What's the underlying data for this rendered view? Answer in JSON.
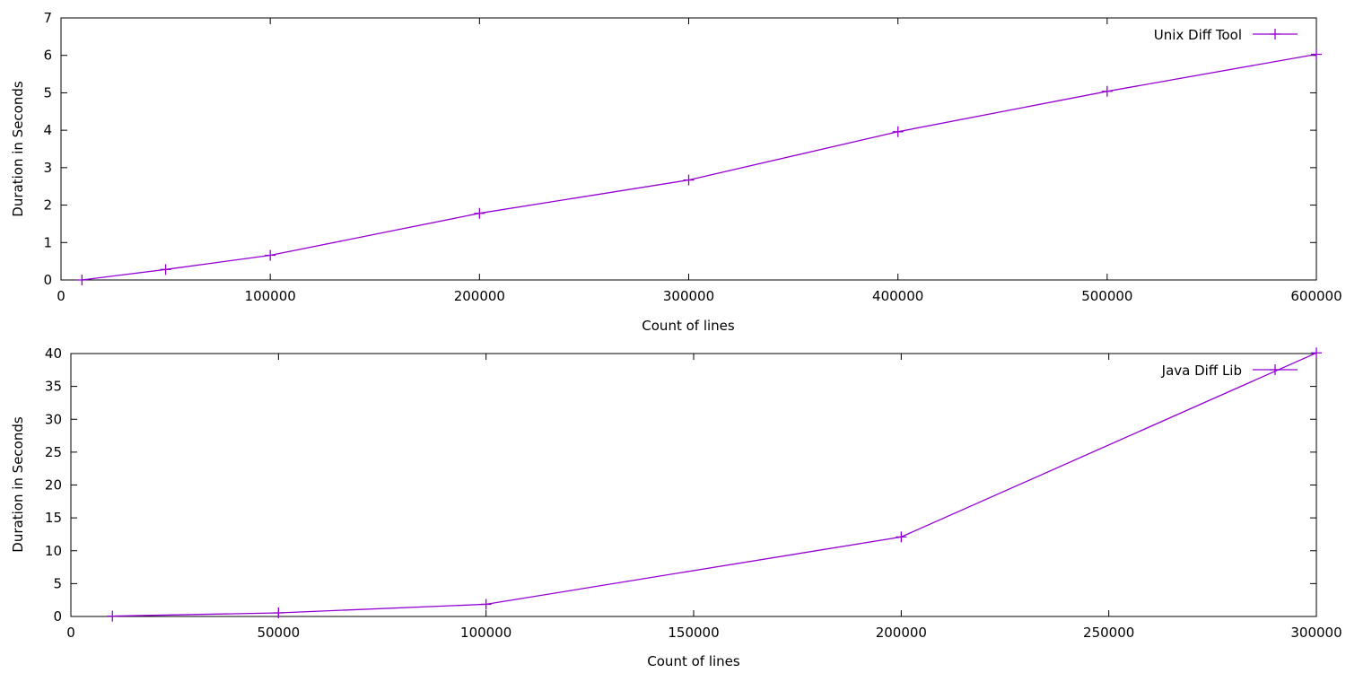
{
  "chart_data": [
    {
      "type": "line",
      "title": "",
      "xlabel": "Count of lines",
      "ylabel": "Duration in Seconds",
      "xlim": [
        0,
        600000
      ],
      "ylim": [
        0,
        7
      ],
      "x_ticks": [
        "0",
        "100000",
        "200000",
        "300000",
        "400000",
        "500000",
        "600000"
      ],
      "y_ticks": [
        "0",
        "1",
        "2",
        "3",
        "4",
        "5",
        "6",
        "7"
      ],
      "grid": false,
      "legend_position": "top-right",
      "series": [
        {
          "name": "Unix Diff Tool",
          "color": "#9400d3",
          "marker": "plus",
          "x": [
            10000,
            50000,
            100000,
            200000,
            300000,
            400000,
            500000,
            600000
          ],
          "y": [
            0.0,
            0.28,
            0.66,
            1.78,
            2.67,
            3.96,
            5.04,
            6.03
          ]
        }
      ]
    },
    {
      "type": "line",
      "title": "",
      "xlabel": "Count of lines",
      "ylabel": "Duration in Seconds",
      "xlim": [
        0,
        300000
      ],
      "ylim": [
        0,
        40
      ],
      "x_ticks": [
        "0",
        "50000",
        "100000",
        "150000",
        "200000",
        "250000",
        "300000"
      ],
      "y_ticks": [
        "0",
        "5",
        "10",
        "15",
        "20",
        "25",
        "30",
        "35",
        "40"
      ],
      "grid": false,
      "legend_position": "top-right",
      "series": [
        {
          "name": "Java Diff Lib",
          "color": "#9400d3",
          "marker": "plus",
          "x": [
            10000,
            50000,
            100000,
            200000,
            300000
          ],
          "y": [
            0.05,
            0.55,
            1.85,
            12.1,
            40.1
          ]
        }
      ]
    }
  ]
}
